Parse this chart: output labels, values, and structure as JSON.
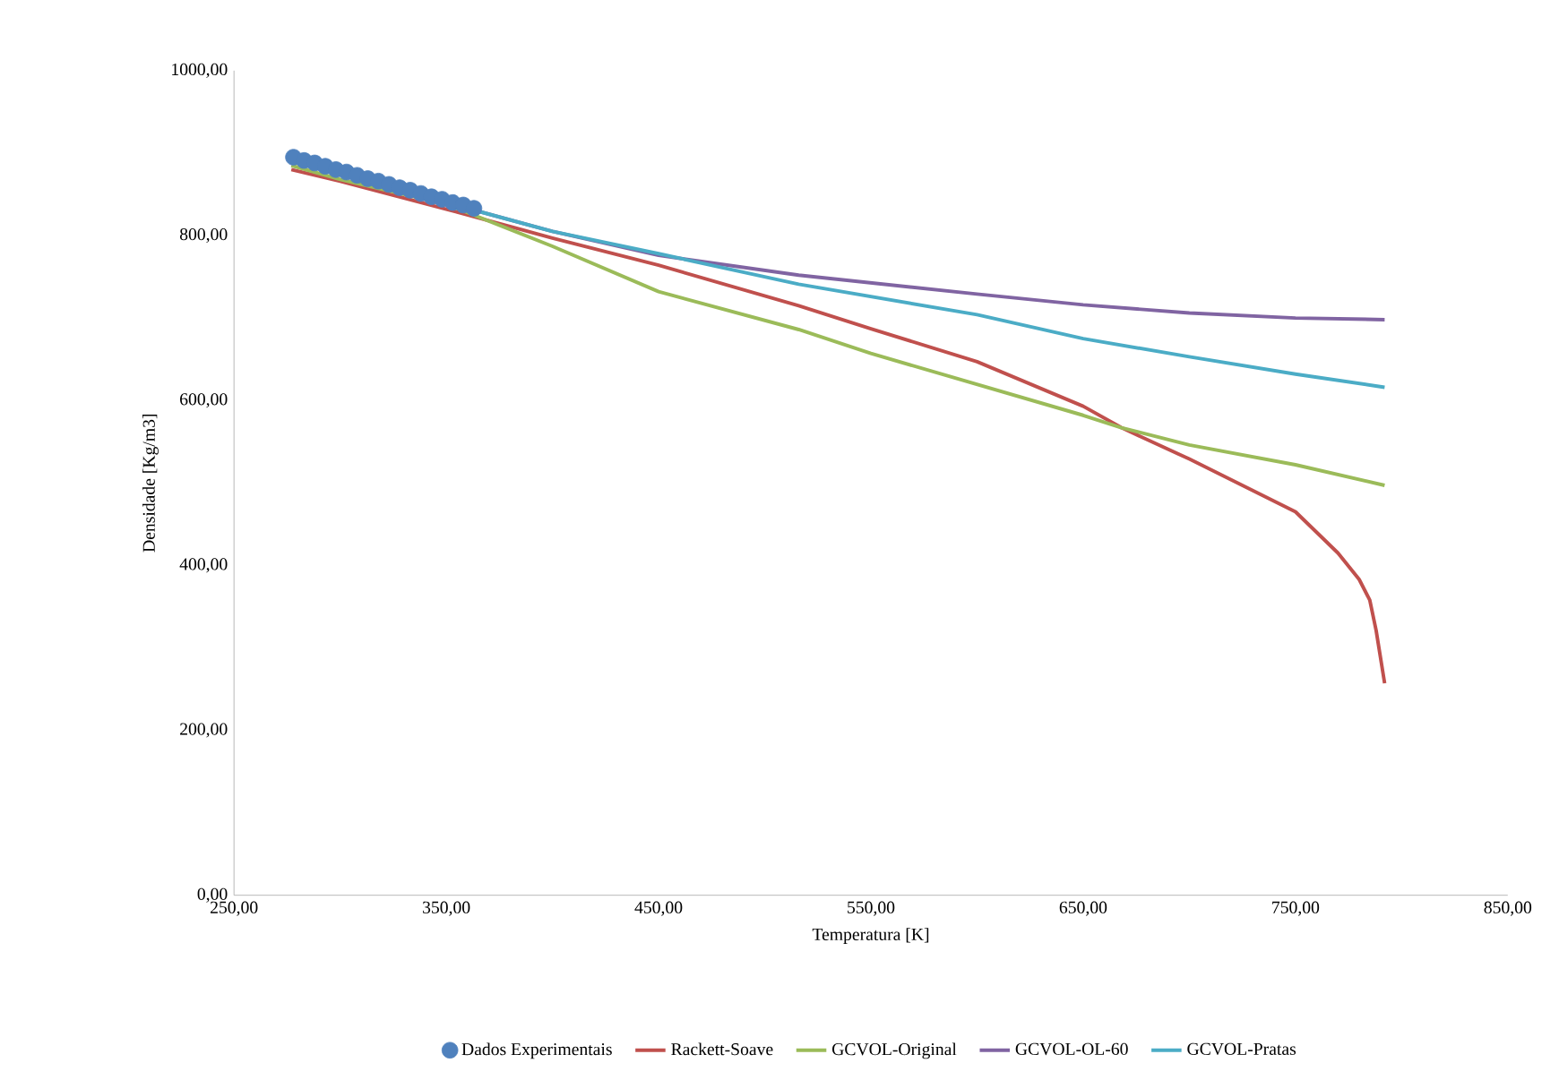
{
  "chart_data": {
    "type": "line",
    "xlabel": "Temperatura [K]",
    "ylabel": "Densidade [Kg/m3]",
    "xlim": [
      250,
      850
    ],
    "ylim": [
      0,
      1000
    ],
    "xticks": [
      {
        "value": 250,
        "label": "250,00"
      },
      {
        "value": 350,
        "label": "350,00"
      },
      {
        "value": 450,
        "label": "450,00"
      },
      {
        "value": 550,
        "label": "550,00"
      },
      {
        "value": 650,
        "label": "650,00"
      },
      {
        "value": 750,
        "label": "750,00"
      },
      {
        "value": 850,
        "label": "850,00"
      }
    ],
    "yticks": [
      {
        "value": 0,
        "label": "0,00"
      },
      {
        "value": 200,
        "label": "200,00"
      },
      {
        "value": 400,
        "label": "400,00"
      },
      {
        "value": 600,
        "label": "600,00"
      },
      {
        "value": 800,
        "label": "800,00"
      },
      {
        "value": 1000,
        "label": "1000,00"
      }
    ],
    "grid": false,
    "legend": "bottom",
    "series": [
      {
        "name": "Dados Experimentais",
        "type": "scatter",
        "color": "#4f81bd",
        "x": [
          278,
          283,
          288,
          293,
          298,
          303,
          308,
          313,
          318,
          323,
          328,
          333,
          338,
          343,
          348,
          353,
          358,
          363
        ],
        "values": [
          895,
          891,
          888,
          884,
          880,
          877,
          873,
          869,
          866,
          862,
          858,
          855,
          851,
          847,
          844,
          840,
          837,
          833
        ]
      },
      {
        "name": "Rackett-Soave",
        "color": "#c0504d",
        "x": [
          277,
          300,
          350,
          400,
          450,
          516,
          550,
          600,
          650,
          668,
          700,
          750,
          770,
          780,
          785,
          788,
          792
        ],
        "values": [
          880,
          866,
          832,
          797,
          764,
          715,
          687,
          647,
          593,
          567,
          529,
          465,
          415,
          383,
          358,
          321,
          257
        ]
      },
      {
        "name": "GCVOL-Original",
        "color": "#9bbb59",
        "x": [
          277,
          300,
          350,
          400,
          450,
          516,
          550,
          650,
          668,
          700,
          750,
          792
        ],
        "values": [
          885,
          868,
          838,
          787,
          732,
          686,
          657,
          582,
          567,
          546,
          522,
          497
        ]
      },
      {
        "name": "GCVOL-OL-60",
        "color": "#8064a2",
        "x": [
          277,
          300,
          350,
          400,
          450,
          516,
          600,
          650,
          700,
          750,
          792
        ],
        "values": [
          890,
          874,
          840,
          805,
          776,
          752,
          729,
          716,
          706,
          700,
          698
        ]
      },
      {
        "name": "GCVOL-Pratas",
        "color": "#4bacc6",
        "x": [
          277,
          300,
          350,
          400,
          450,
          516,
          600,
          650,
          700,
          750,
          792
        ],
        "values": [
          890,
          874,
          840,
          805,
          778,
          741,
          704,
          675,
          653,
          632,
          616
        ]
      }
    ]
  }
}
